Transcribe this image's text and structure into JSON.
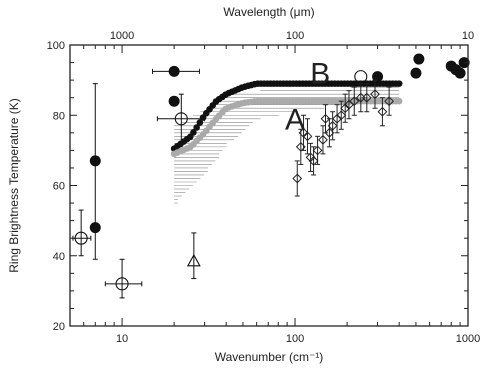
{
  "chart_data": {
    "type": "scatter",
    "xscale": "log",
    "xlim": [
      5,
      1000
    ],
    "ylim": [
      20,
      100
    ],
    "xlabel": "Wavenumber (cm⁻¹)",
    "ylabel": "Ring Brightness Temperature (K)",
    "x2label": "Wavelength (μm)",
    "x_ticks": [
      {
        "value": 10,
        "label": "10"
      },
      {
        "value": 100,
        "label": "100"
      },
      {
        "value": 1000,
        "label": "1000"
      }
    ],
    "x2_ticks": [
      {
        "value": 10,
        "label": "1000"
      },
      {
        "value": 100,
        "label": "100"
      },
      {
        "value": 1000,
        "label": "10"
      }
    ],
    "y_ticks": [
      {
        "value": 20,
        "label": "20"
      },
      {
        "value": 40,
        "label": "40"
      },
      {
        "value": 60,
        "label": "60"
      },
      {
        "value": 80,
        "label": "80"
      },
      {
        "value": 100,
        "label": "100"
      }
    ],
    "grid": false,
    "annotations": [
      {
        "text": "B",
        "x": 140,
        "y": 89
      },
      {
        "text": "A",
        "x": 100,
        "y": 76
      }
    ],
    "series": [
      {
        "marker": "filled-circle",
        "color": "#111111",
        "points": [
          {
            "x": 7,
            "y": 67
          },
          {
            "x": 7,
            "y": 48,
            "yerr_low": 9,
            "yerr_high": 41
          },
          {
            "x": 20,
            "y": 92.5,
            "xerr_low": 5,
            "xerr_high": 8
          },
          {
            "x": 20,
            "y": 84
          },
          {
            "x": 300,
            "y": 91
          },
          {
            "x": 500,
            "y": 92
          },
          {
            "x": 520,
            "y": 96
          },
          {
            "x": 800,
            "y": 94
          },
          {
            "x": 850,
            "y": 93
          },
          {
            "x": 900,
            "y": 92
          },
          {
            "x": 950,
            "y": 95
          }
        ]
      },
      {
        "marker": "open-circle",
        "color": "#111111",
        "points": [
          {
            "x": 5.8,
            "y": 45,
            "xerr_low": 0.6,
            "xerr_high": 0.8,
            "yerr_low": 5,
            "yerr_high": 8
          },
          {
            "x": 10,
            "y": 32,
            "xerr_low": 2,
            "xerr_high": 3,
            "yerr_low": 4,
            "yerr_high": 7
          },
          {
            "x": 22,
            "y": 79,
            "xerr_low": 6,
            "xerr_high": 8,
            "yerr_low": 7,
            "yerr_high": 7
          },
          {
            "x": 240,
            "y": 91
          }
        ]
      },
      {
        "marker": "open-triangle",
        "color": "#111111",
        "points": [
          {
            "x": 26,
            "y": 38.5,
            "yerr_low": 5,
            "yerr_high": 8
          }
        ]
      },
      {
        "marker": "open-diamond",
        "color": "#222222",
        "points": [
          {
            "x": 103,
            "y": 62,
            "yerr_low": 5,
            "yerr_high": 5
          },
          {
            "x": 108,
            "y": 71,
            "yerr_low": 5,
            "yerr_high": 5
          },
          {
            "x": 112,
            "y": 75,
            "yerr_low": 5,
            "yerr_high": 5
          },
          {
            "x": 118,
            "y": 74,
            "yerr_low": 5,
            "yerr_high": 5
          },
          {
            "x": 123,
            "y": 68,
            "yerr_low": 4,
            "yerr_high": 4
          },
          {
            "x": 128,
            "y": 67,
            "yerr_low": 4,
            "yerr_high": 4
          },
          {
            "x": 135,
            "y": 70,
            "yerr_low": 4,
            "yerr_high": 4
          },
          {
            "x": 145,
            "y": 73,
            "yerr_low": 4,
            "yerr_high": 4
          },
          {
            "x": 150,
            "y": 79,
            "yerr_low": 4,
            "yerr_high": 4
          },
          {
            "x": 158,
            "y": 75,
            "yerr_low": 4,
            "yerr_high": 4
          },
          {
            "x": 165,
            "y": 77,
            "yerr_low": 4,
            "yerr_high": 4
          },
          {
            "x": 175,
            "y": 79,
            "yerr_low": 4,
            "yerr_high": 4
          },
          {
            "x": 185,
            "y": 80,
            "yerr_low": 4,
            "yerr_high": 4
          },
          {
            "x": 195,
            "y": 82,
            "yerr_low": 4,
            "yerr_high": 4
          },
          {
            "x": 205,
            "y": 83,
            "yerr_low": 4,
            "yerr_high": 4
          },
          {
            "x": 220,
            "y": 84,
            "yerr_low": 4,
            "yerr_high": 4
          },
          {
            "x": 240,
            "y": 85,
            "yerr_low": 4,
            "yerr_high": 4
          },
          {
            "x": 260,
            "y": 85,
            "yerr_low": 4,
            "yerr_high": 4
          },
          {
            "x": 290,
            "y": 86,
            "yerr_low": 4,
            "yerr_high": 4
          },
          {
            "x": 320,
            "y": 81,
            "yerr_low": 4,
            "yerr_high": 4
          },
          {
            "x": 350,
            "y": 84,
            "yerr_low": 4,
            "yerr_high": 4
          }
        ]
      },
      {
        "marker": "dense-band",
        "color": "#111111",
        "points": [
          {
            "x": 20,
            "y": 70.5
          },
          {
            "x": 25,
            "y": 74
          },
          {
            "x": 30,
            "y": 80
          },
          {
            "x": 35,
            "y": 84
          },
          {
            "x": 40,
            "y": 86
          },
          {
            "x": 50,
            "y": 88
          },
          {
            "x": 60,
            "y": 89
          },
          {
            "x": 80,
            "y": 89
          },
          {
            "x": 100,
            "y": 89
          },
          {
            "x": 150,
            "y": 89
          },
          {
            "x": 200,
            "y": 89
          },
          {
            "x": 300,
            "y": 89
          },
          {
            "x": 400,
            "y": 89
          }
        ]
      },
      {
        "marker": "dense-band",
        "color": "#aaaaaa",
        "points": [
          {
            "x": 20,
            "y": 69
          },
          {
            "x": 25,
            "y": 71
          },
          {
            "x": 30,
            "y": 75
          },
          {
            "x": 35,
            "y": 79
          },
          {
            "x": 40,
            "y": 82
          },
          {
            "x": 50,
            "y": 83.5
          },
          {
            "x": 60,
            "y": 84
          },
          {
            "x": 80,
            "y": 84
          },
          {
            "x": 100,
            "y": 84
          },
          {
            "x": 150,
            "y": 84
          },
          {
            "x": 200,
            "y": 84
          },
          {
            "x": 300,
            "y": 84
          },
          {
            "x": 400,
            "y": 84
          }
        ]
      },
      {
        "marker": "hatched-band",
        "color": "#888888",
        "points": [
          {
            "x": 20,
            "y": 66,
            "y_low": 55,
            "y_high": 77
          },
          {
            "x": 30,
            "y": 73,
            "y_low": 64,
            "y_high": 82
          },
          {
            "x": 40,
            "y": 79,
            "y_low": 72,
            "y_high": 86
          },
          {
            "x": 60,
            "y": 83,
            "y_low": 79,
            "y_high": 87
          },
          {
            "x": 100,
            "y": 84,
            "y_low": 81,
            "y_high": 87
          },
          {
            "x": 200,
            "y": 85,
            "y_low": 83,
            "y_high": 88
          },
          {
            "x": 400,
            "y": 86,
            "y_low": 84,
            "y_high": 88
          }
        ]
      }
    ]
  }
}
